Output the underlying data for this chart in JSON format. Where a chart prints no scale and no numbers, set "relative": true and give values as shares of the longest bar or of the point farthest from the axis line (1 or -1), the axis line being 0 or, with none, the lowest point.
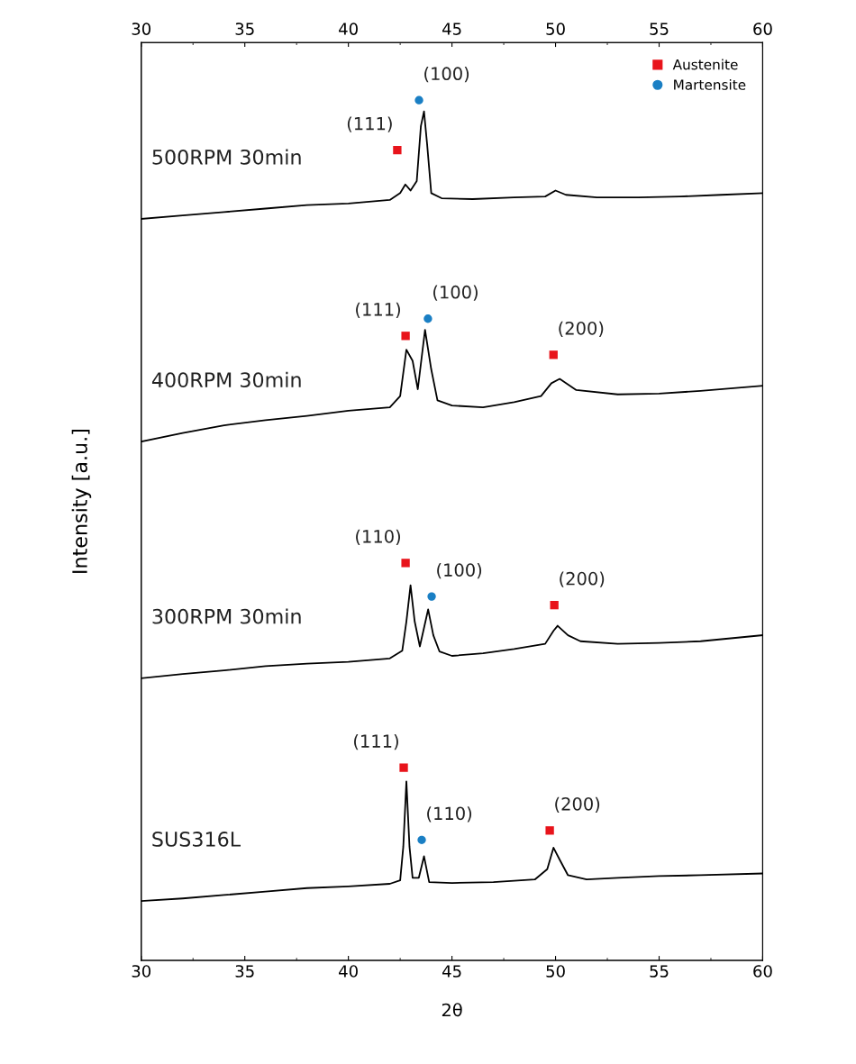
{
  "chart_data": {
    "type": "line",
    "relative": true,
    "xlabel": "2θ",
    "ylabel": "Intensity [a.u.]",
    "xlim": [
      30,
      60
    ],
    "xticks": [
      30,
      35,
      40,
      45,
      50,
      55,
      60
    ],
    "x2lim": [
      30,
      60
    ],
    "x2ticks": [
      30,
      35,
      40,
      45,
      50,
      55,
      60
    ],
    "grid": false,
    "legend": "top right",
    "tick_labels": "x",
    "series": [
      {
        "name": "500RPM 30min",
        "color": "#000000",
        "marker": "none",
        "x": [
          30,
          32,
          34,
          36,
          38,
          40,
          42,
          42.5,
          42.75,
          43.0,
          43.3,
          43.5,
          43.65,
          43.8,
          44.0,
          44.5,
          46,
          48,
          49.5,
          50,
          50.5,
          52,
          54,
          56,
          58,
          60
        ],
        "values": [
          0.862,
          0.866,
          0.87,
          0.874,
          0.878,
          0.88,
          0.884,
          0.892,
          0.902,
          0.895,
          0.906,
          0.97,
          0.987,
          0.949,
          0.892,
          0.886,
          0.885,
          0.887,
          0.888,
          0.895,
          0.89,
          0.887,
          0.887,
          0.888,
          0.89,
          0.892
        ]
      },
      {
        "name": "400RPM 30min",
        "color": "#000000",
        "marker": "none",
        "x": [
          30,
          32,
          34,
          36,
          38,
          40,
          42,
          42.5,
          42.8,
          43.1,
          43.35,
          43.7,
          44.0,
          44.3,
          45,
          46.5,
          48,
          49.3,
          49.8,
          50.2,
          51,
          53,
          55,
          57,
          60
        ],
        "values": [
          0.603,
          0.613,
          0.622,
          0.628,
          0.633,
          0.639,
          0.643,
          0.656,
          0.71,
          0.697,
          0.664,
          0.733,
          0.687,
          0.651,
          0.645,
          0.643,
          0.649,
          0.656,
          0.671,
          0.676,
          0.663,
          0.658,
          0.659,
          0.662,
          0.668
        ]
      },
      {
        "name": "300RPM 30min",
        "color": "#000000",
        "marker": "none",
        "x": [
          30,
          32,
          34,
          36,
          38,
          40,
          42,
          42.6,
          42.8,
          43.0,
          43.2,
          43.45,
          43.85,
          44.1,
          44.4,
          45,
          46.5,
          48,
          49.5,
          49.9,
          50.1,
          50.6,
          51.2,
          53,
          55,
          57,
          60
        ],
        "values": [
          0.328,
          0.333,
          0.337,
          0.342,
          0.345,
          0.347,
          0.351,
          0.36,
          0.394,
          0.436,
          0.394,
          0.365,
          0.408,
          0.378,
          0.359,
          0.354,
          0.357,
          0.362,
          0.368,
          0.383,
          0.389,
          0.378,
          0.371,
          0.368,
          0.369,
          0.371,
          0.378
        ]
      },
      {
        "name": "SUS316L",
        "color": "#000000",
        "marker": "none",
        "x": [
          30,
          32,
          34,
          36,
          38,
          40,
          42,
          42.5,
          42.65,
          42.8,
          42.95,
          43.1,
          43.4,
          43.65,
          43.9,
          45,
          47,
          49,
          49.6,
          49.9,
          50.2,
          50.6,
          51.5,
          53,
          55,
          57,
          60
        ],
        "values": [
          0.069,
          0.072,
          0.076,
          0.08,
          0.084,
          0.086,
          0.089,
          0.093,
          0.132,
          0.208,
          0.132,
          0.096,
          0.096,
          0.121,
          0.091,
          0.09,
          0.091,
          0.094,
          0.106,
          0.131,
          0.117,
          0.099,
          0.094,
          0.096,
          0.098,
          0.099,
          0.101
        ]
      },
      {
        "type": "scatter",
        "name": "Austenite",
        "color": "#e8141b",
        "marker": "square",
        "x": [
          42.36,
          42.76,
          49.9,
          42.76,
          49.94,
          42.67,
          49.72
        ],
        "values": [
          0.942,
          0.726,
          0.704,
          0.462,
          0.413,
          0.224,
          0.151
        ]
      },
      {
        "type": "scatter",
        "name": "Martensite",
        "color": "#1a7fc4",
        "marker": "circle",
        "x": [
          43.41,
          43.84,
          44.02,
          43.54
        ],
        "values": [
          1.0,
          0.746,
          0.423,
          0.14
        ]
      }
    ],
    "annotations": [
      {
        "text": "(111)",
        "x": 42.36,
        "y": 0.942
      },
      {
        "text": "(100)",
        "x": 43.41,
        "y": 1.0
      },
      {
        "text": "(111)",
        "x": 42.76,
        "y": 0.726
      },
      {
        "text": "(100)",
        "x": 43.84,
        "y": 0.746
      },
      {
        "text": "(200)",
        "x": 49.9,
        "y": 0.704
      },
      {
        "text": "(110)",
        "x": 42.76,
        "y": 0.462
      },
      {
        "text": "(100)",
        "x": 44.02,
        "y": 0.423
      },
      {
        "text": "(200)",
        "x": 49.94,
        "y": 0.413
      },
      {
        "text": "(111)",
        "x": 42.67,
        "y": 0.224
      },
      {
        "text": "(110)",
        "x": 43.54,
        "y": 0.14
      },
      {
        "text": "(200)",
        "x": 49.72,
        "y": 0.151
      }
    ]
  }
}
